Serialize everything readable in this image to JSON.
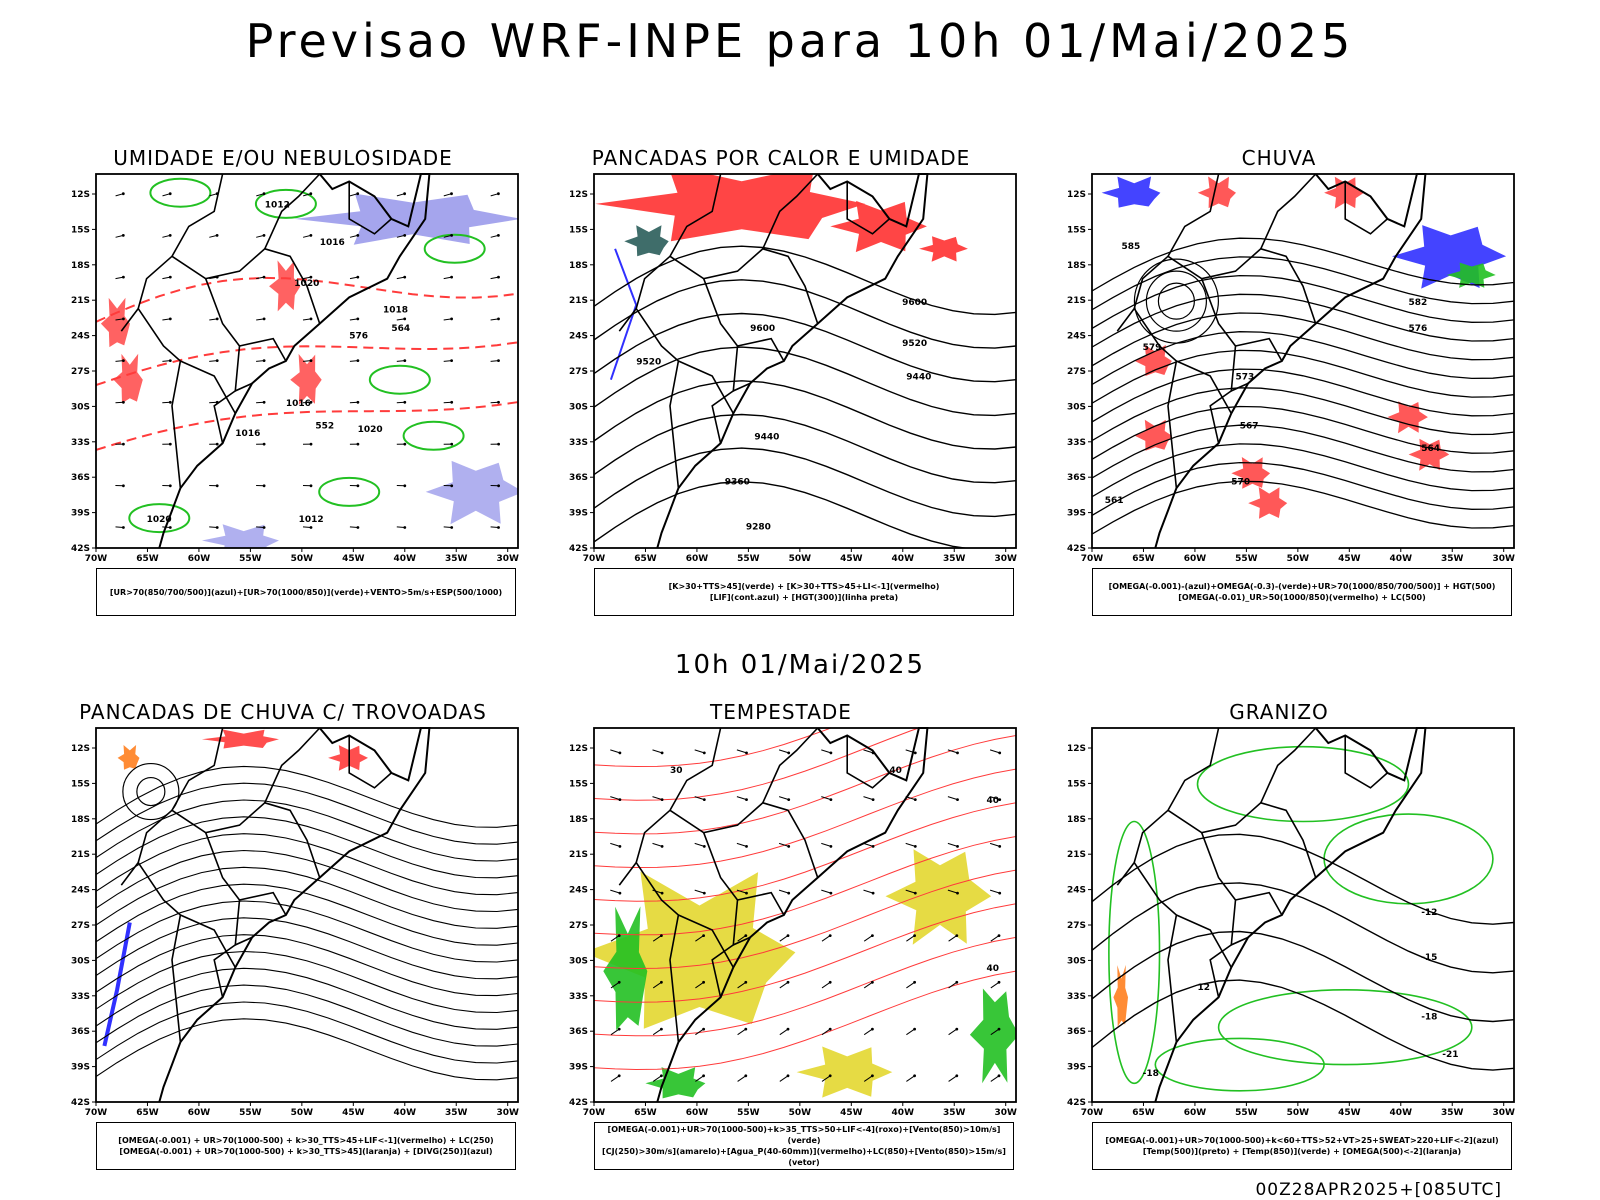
{
  "header": {
    "title": "Previsao WRF-INPE  para 10h 01/Mai/2025"
  },
  "middle_title": "10h 01/Mai/2025",
  "footer": "00Z28APR2025+[085UTC]",
  "axes": {
    "lat_labels": [
      "12S",
      "15S",
      "18S",
      "21S",
      "24S",
      "27S",
      "30S",
      "33S",
      "36S",
      "39S",
      "42S"
    ],
    "lon_labels": [
      "70W",
      "65W",
      "60W",
      "55W",
      "50W",
      "45W",
      "40W",
      "35W",
      "30W"
    ]
  },
  "colors": {
    "green": "#22c022",
    "red": "#ff3b3b",
    "blue": "#3030ff",
    "yellow": "#e5d93a",
    "purple": "#8f8fe8",
    "orange": "#ff7f1f",
    "black": "#000000"
  },
  "panels": [
    {
      "id": "umidade",
      "title": "UMIDADE E/OU NEBULOSIDADE",
      "legend": [
        "[UR>70(850/700/500)](azul)+[UR>70(1000/850)](verde)+VENTO>5m/s+ESP(500/1000)"
      ],
      "labels": [
        "1012",
        "1016",
        "1020",
        "1018",
        "576",
        "564",
        "552",
        "1020",
        "1016",
        "1020",
        "1012",
        "1016"
      ]
    },
    {
      "id": "pancadas_calor",
      "title": "PANCADAS POR CALOR E UMIDADE",
      "legend": [
        "[K>30+TTS>45](verde) + [K>30+TTS>45+LI<-1](vermelho)",
        "[LIF](cont.azul) + [HGT(300)](linha preta)"
      ],
      "labels": [
        "9600",
        "9520",
        "9440",
        "9360",
        "9280",
        "9600",
        "9520",
        "9440"
      ]
    },
    {
      "id": "chuva",
      "title": "CHUVA",
      "legend": [
        "[OMEGA(-0.001)-(azul)+OMEGA(-0.3)-(verde)+UR>70(1000/850/700/500)] + HGT(500)",
        "[OMEGA(-0.01)_UR>50(1000/850)(vermelho) + LC(500)"
      ],
      "labels": [
        "585",
        "579",
        "573",
        "567",
        "561",
        "582",
        "576",
        "570",
        "564"
      ]
    },
    {
      "id": "pancadas_trovoadas",
      "title": "PANCADAS DE CHUVA C/ TROVOADAS",
      "legend": [
        "[OMEGA(-0.001) + UR>70(1000-500) + k>30_TTS>45+LIF<-1](vermelho) + LC(250)",
        "[OMEGA(-0.001) + UR>70(1000-500) + k>30_TTS>45](laranja) + [DIVG(250)](azul)"
      ],
      "labels": []
    },
    {
      "id": "tempestade",
      "title": "TEMPESTADE",
      "legend": [
        "[OMEGA(-0.001)+UR>70(1000-500)+k>35_TTS>50+LIF<-4](roxo)+[Vento(850)>10m/s](verde)",
        "[CJ(250)>30m/s](amarelo)+[Agua_P(40-60mm)](vermelho)+LC(850)+[Vento(850)>15m/s](vetor)"
      ],
      "labels": [
        "30",
        "40",
        "40",
        "40"
      ]
    },
    {
      "id": "granizo",
      "title": "GRANIZO",
      "legend": [
        "[OMEGA(-0.001)+UR>70(1000-500)+k<60+TTS>52+VT>25+SWEAT>220+LIF<-2](azul)",
        "[Temp(500)](preto) + [Temp(850)](verde) + [OMEGA(500)<-2](laranja)"
      ],
      "labels": [
        "-12",
        "-15",
        "-18",
        "-21",
        "-18",
        "12"
      ]
    }
  ]
}
